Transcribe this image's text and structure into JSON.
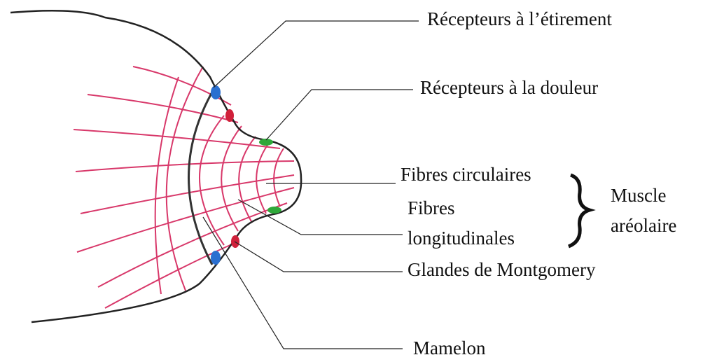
{
  "labels": {
    "stretch_receptors": "Récepteurs à l’étirement",
    "pain_receptors": "Récepteurs à la douleur",
    "circular_fibers": "Fibres circulaires",
    "longitudinal_fibers": [
      "Fibres",
      "longitudinales"
    ],
    "areolar_muscle": [
      "Muscle",
      "aréolaire"
    ],
    "montgomery_glands": "Glandes de Montgomery",
    "nipple": "Mamelon"
  }
}
